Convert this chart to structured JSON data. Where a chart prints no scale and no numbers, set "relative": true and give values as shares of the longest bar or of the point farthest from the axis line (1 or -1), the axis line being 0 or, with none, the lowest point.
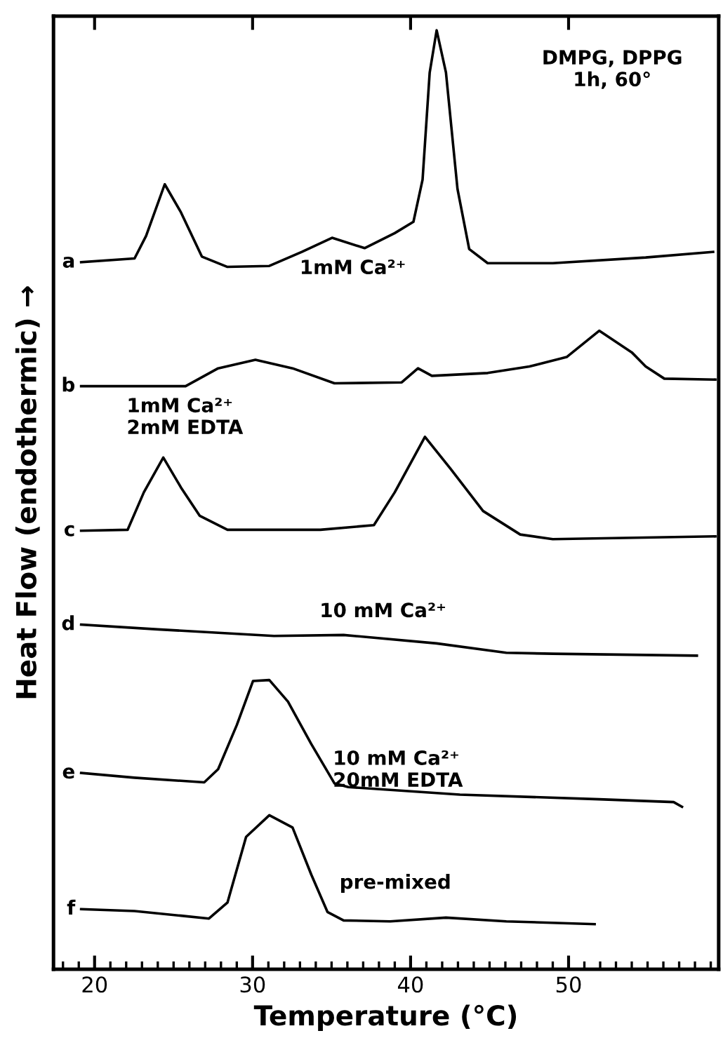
{
  "chart_data": {
    "type": "line",
    "relative": true,
    "xlabel": "Temperature (°C)",
    "ylabel": "Heat Flow (endothermic) →",
    "xlim": [
      17.4,
      59.5
    ],
    "xticks": [
      {
        "value": 18,
        "label": null
      },
      {
        "value": 19,
        "label": null
      },
      20,
      {
        "value": 21,
        "label": null
      },
      {
        "value": 22,
        "label": null
      },
      {
        "value": 23,
        "label": null
      },
      {
        "value": 24,
        "label": null
      },
      {
        "value": 25,
        "label": null
      },
      {
        "value": 26,
        "label": null
      },
      {
        "value": 27,
        "label": null
      },
      {
        "value": 28,
        "label": null
      },
      {
        "value": 29,
        "label": null
      },
      30,
      {
        "value": 31,
        "label": null
      },
      {
        "value": 32,
        "label": null
      },
      {
        "value": 33,
        "label": null
      },
      {
        "value": 34,
        "label": null
      },
      {
        "value": 35,
        "label": null
      },
      {
        "value": 36,
        "label": null
      },
      {
        "value": 37,
        "label": null
      },
      {
        "value": 38,
        "label": null
      },
      {
        "value": 39,
        "label": null
      },
      40,
      {
        "value": 41,
        "label": null
      },
      {
        "value": 42,
        "label": null
      },
      {
        "value": 43,
        "label": null
      },
      {
        "value": 44,
        "label": null
      },
      {
        "value": 45,
        "label": null
      },
      {
        "value": 46,
        "label": null
      },
      {
        "value": 47,
        "label": null
      },
      {
        "value": 48,
        "label": null
      },
      {
        "value": 49,
        "label": null
      },
      50,
      {
        "value": 51,
        "label": null
      },
      {
        "value": 52,
        "label": null
      },
      {
        "value": 53,
        "label": null
      },
      {
        "value": 54,
        "label": null
      },
      {
        "value": 55,
        "label": null
      },
      {
        "value": 56,
        "label": null
      },
      {
        "value": 57,
        "label": null
      },
      {
        "value": 58,
        "label": null
      },
      {
        "value": 59,
        "label": null
      }
    ],
    "grid": false,
    "legend": false,
    "marker": "none",
    "line_style": "solid",
    "annotations": [
      "DMPG, DPPG\n1h, 60°",
      "1mM Ca²⁺",
      "1mM Ca²⁺\n2mM EDTA",
      "10 mM Ca²⁺",
      "10 mM Ca²⁺\n20mM EDTA",
      "pre-mixed"
    ],
    "series": [
      {
        "name": "a",
        "color": "#000000",
        "x": [
          19.15,
          22.53,
          23.26,
          24.44,
          25.47,
          26.79,
          28.41,
          31.06,
          33.12,
          35.03,
          37.09,
          39.0,
          40.18,
          40.76,
          41.21,
          41.65,
          42.24,
          42.97,
          43.71,
          44.88,
          49.0,
          54.88,
          59.15
        ],
        "values": [
          0.753,
          0.757,
          0.781,
          0.836,
          0.806,
          0.759,
          0.748,
          0.749,
          0.764,
          0.779,
          0.768,
          0.784,
          0.796,
          0.841,
          0.955,
          1.0,
          0.955,
          0.831,
          0.767,
          0.752,
          0.752,
          0.758,
          0.764
        ]
      },
      {
        "name": "b",
        "color": "#000000",
        "x": [
          19.15,
          25.76,
          27.82,
          30.18,
          32.53,
          35.18,
          39.44,
          40.47,
          41.35,
          44.88,
          47.53,
          49.88,
          51.94,
          54.0,
          54.88,
          56.06,
          59.29
        ],
        "values": [
          0.621,
          0.621,
          0.64,
          0.649,
          0.64,
          0.624,
          0.625,
          0.64,
          0.632,
          0.635,
          0.642,
          0.652,
          0.68,
          0.657,
          0.642,
          0.629,
          0.628
        ]
      },
      {
        "name": "c",
        "color": "#000000",
        "x": [
          19.15,
          22.09,
          23.12,
          24.35,
          25.47,
          26.65,
          28.41,
          34.29,
          37.68,
          39.0,
          40.91,
          42.53,
          44.59,
          46.94,
          49.0,
          59.29
        ],
        "values": [
          0.467,
          0.468,
          0.508,
          0.545,
          0.513,
          0.483,
          0.468,
          0.468,
          0.473,
          0.508,
          0.567,
          0.533,
          0.488,
          0.463,
          0.458,
          0.461
        ]
      },
      {
        "name": "d",
        "color": "#000000",
        "x": [
          19.15,
          24.0,
          31.35,
          35.76,
          41.65,
          46.06,
          49.0,
          58.12
        ],
        "values": [
          0.367,
          0.362,
          0.355,
          0.356,
          0.347,
          0.337,
          0.336,
          0.334
        ]
      },
      {
        "name": "e",
        "color": "#000000",
        "x": [
          19.15,
          22.53,
          26.94,
          27.82,
          29.0,
          30.03,
          31.06,
          32.24,
          33.71,
          35.18,
          36.06,
          43.12,
          51.94,
          56.65,
          57.18
        ],
        "values": [
          0.209,
          0.204,
          0.199,
          0.213,
          0.26,
          0.307,
          0.308,
          0.285,
          0.24,
          0.198,
          0.194,
          0.186,
          0.181,
          0.178,
          0.173
        ]
      },
      {
        "name": "f",
        "color": "#000000",
        "x": [
          19.15,
          22.53,
          25.47,
          27.24,
          28.41,
          29.59,
          31.06,
          32.53,
          33.71,
          34.74,
          35.76,
          38.71,
          42.24,
          46.06,
          51.65
        ],
        "values": [
          0.064,
          0.062,
          0.057,
          0.054,
          0.071,
          0.141,
          0.164,
          0.151,
          0.101,
          0.061,
          0.052,
          0.051,
          0.055,
          0.051,
          0.048
        ]
      }
    ]
  }
}
